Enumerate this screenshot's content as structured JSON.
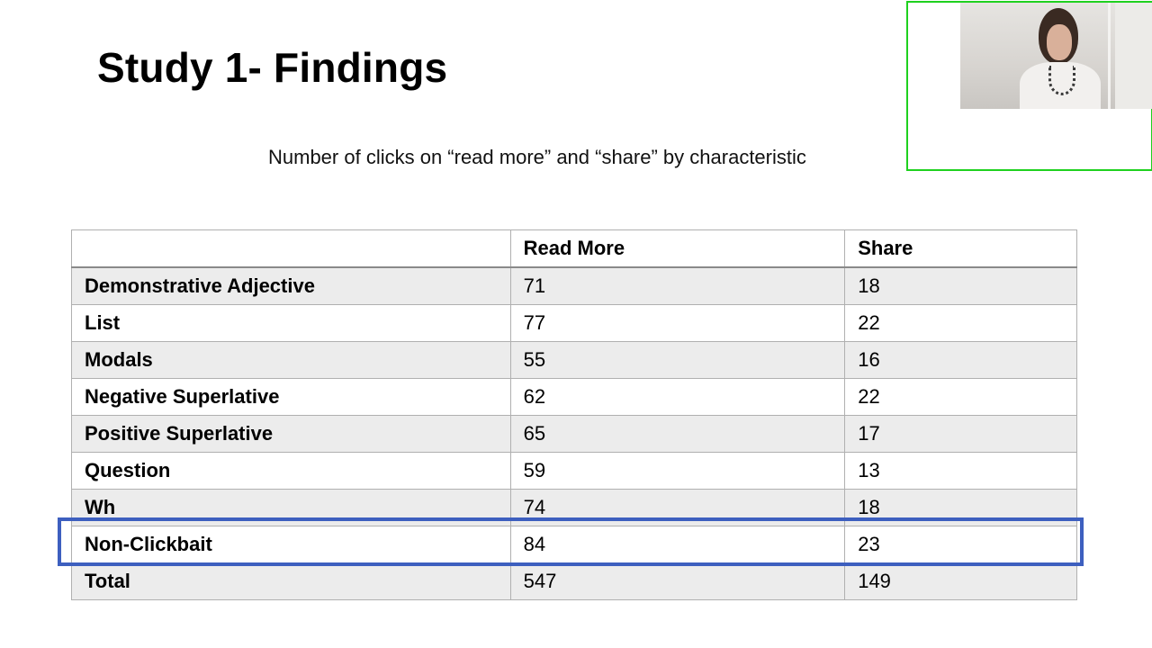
{
  "slide": {
    "title": "Study 1- Findings",
    "subtitle": "Number of clicks on “read more” and “share” by characteristic"
  },
  "table": {
    "headers": [
      "",
      "Read More",
      "Share"
    ],
    "rows": [
      {
        "label": "Demonstrative Adjective",
        "read_more": "71",
        "share": "18"
      },
      {
        "label": "List",
        "read_more": "77",
        "share": "22"
      },
      {
        "label": "Modals",
        "read_more": "55",
        "share": "16"
      },
      {
        "label": "Negative Superlative",
        "read_more": "62",
        "share": "22"
      },
      {
        "label": "Positive Superlative",
        "read_more": "65",
        "share": "17"
      },
      {
        "label": "Question",
        "read_more": "59",
        "share": "13"
      },
      {
        "label": "Wh",
        "read_more": "74",
        "share": "18"
      },
      {
        "label": "Non-Clickbait",
        "read_more": "84",
        "share": "23"
      },
      {
        "label": "Total",
        "read_more": "547",
        "share": "149"
      }
    ],
    "highlighted_row": "Non-Clickbait"
  },
  "colors": {
    "highlight_border": "#3d5fbf",
    "video_border": "#1fd11f",
    "row_shade": "#ececec"
  }
}
